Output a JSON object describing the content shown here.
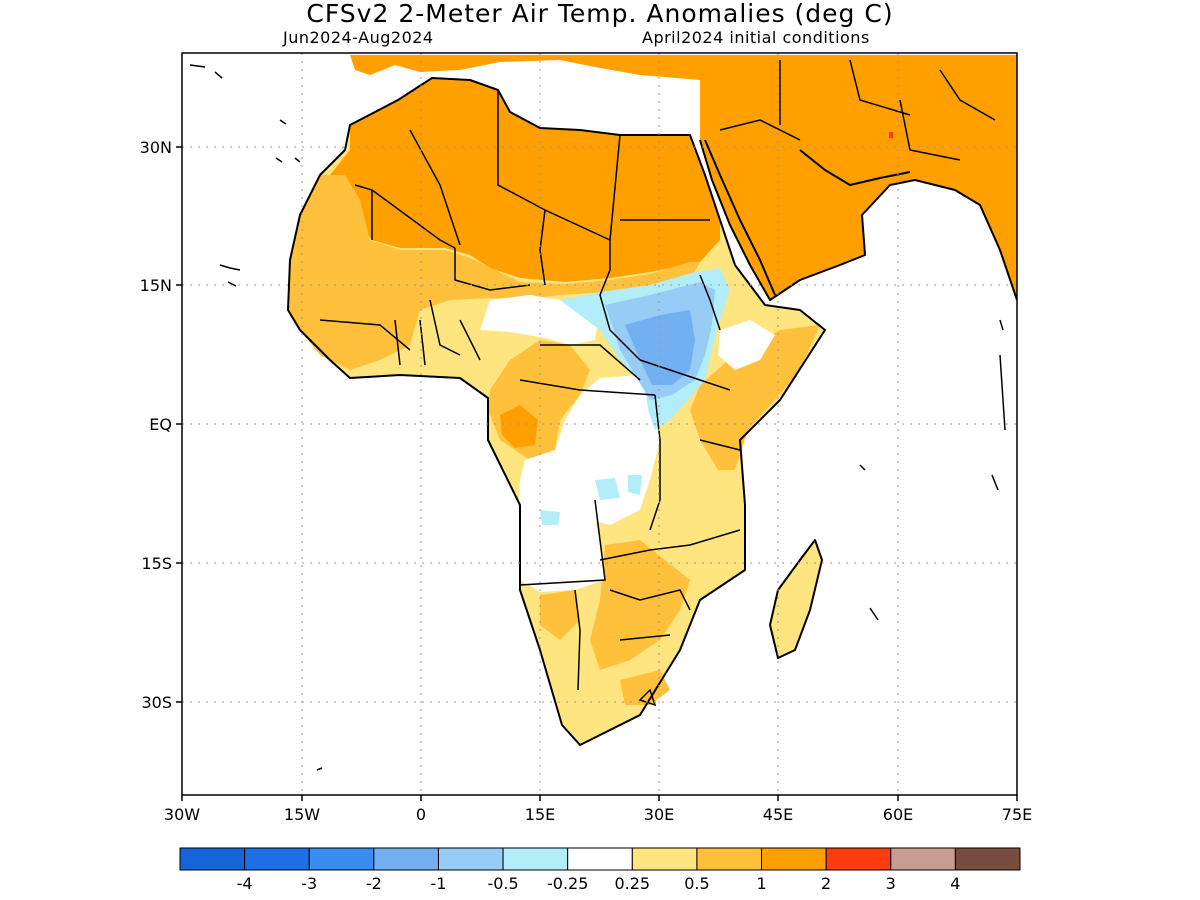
{
  "title": "CFSv2 2-Meter Air Temp. Anomalies (deg C)",
  "subtitle_left": "Jun2024-Aug2024",
  "subtitle_right": "April2024 initial conditions",
  "map": {
    "region": "Africa and Arabian Peninsula",
    "lon_range": [
      -30,
      75
    ],
    "lat_range": [
      -40,
      38
    ],
    "lon_ticks": [
      "30W",
      "15W",
      "0",
      "15E",
      "30E",
      "45E",
      "60E",
      "75E"
    ],
    "lat_ticks": [
      "30N",
      "15N",
      "EQ",
      "15S",
      "30S"
    ],
    "gridlines": "dotted"
  },
  "colorbar": {
    "colors": [
      "#1565d8",
      "#1f6ee8",
      "#3a8cf0",
      "#72b0f2",
      "#96ccf6",
      "#b2eefa",
      "#ffffff",
      "#ffe57f",
      "#ffc13c",
      "#ffa000",
      "#ff3c10",
      "#c89c90",
      "#7a4c40"
    ],
    "labels": [
      "-4",
      "-3",
      "-2",
      "-1",
      "-0.5",
      "-0.25",
      "0.25",
      "0.5",
      "1",
      "2",
      "3",
      "4"
    ]
  },
  "legend": {
    "cold_1": "#3a8cf0",
    "cold_2": "#72b0f2",
    "cold_3": "#96ccf6",
    "cool": "#b2eefa",
    "warm_1": "#ffe57f",
    "warm_2": "#ffc13c",
    "warm_3": "#ffa000",
    "hot": "#ff3c10"
  }
}
